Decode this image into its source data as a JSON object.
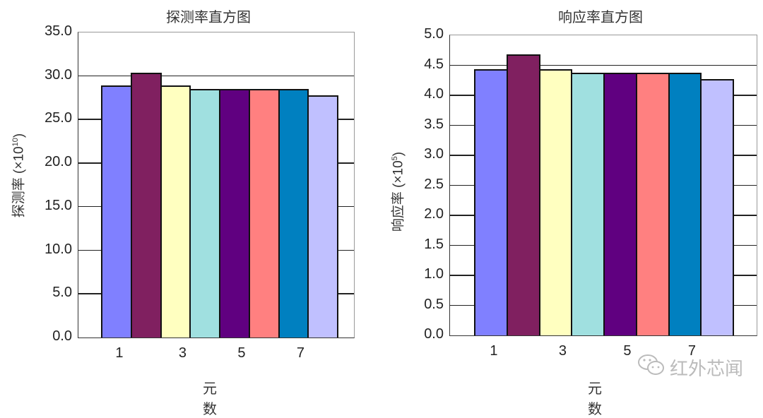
{
  "chart_data": [
    {
      "type": "bar",
      "title": "探测率直方图",
      "xlabel": "元数",
      "ylabel": "探测率 (×10^10)",
      "categories": [
        "1",
        "2",
        "3",
        "4",
        "5",
        "6",
        "7",
        "8"
      ],
      "x_tick_labels": [
        "1",
        "3",
        "5",
        "7"
      ],
      "values": [
        28.9,
        30.4,
        28.9,
        28.5,
        28.5,
        28.5,
        28.5,
        27.8
      ],
      "colors": [
        "#8080ff",
        "#802060",
        "#ffffc0",
        "#a0e0e0",
        "#600080",
        "#ff8080",
        "#0080c0",
        "#c0c0ff"
      ],
      "ylim": [
        0,
        35
      ],
      "y_ticks": [
        "0.0",
        "5.0",
        "10.0",
        "15.0",
        "20.0",
        "25.0",
        "30.0",
        "35.0"
      ],
      "grid": true,
      "legend": null
    },
    {
      "type": "bar",
      "title": "响应率直方图",
      "xlabel": "元数",
      "ylabel": "响应率 (×10^5)",
      "categories": [
        "1",
        "2",
        "3",
        "4",
        "5",
        "6",
        "7",
        "8"
      ],
      "x_tick_labels": [
        "1",
        "3",
        "5",
        "7"
      ],
      "values": [
        4.44,
        4.68,
        4.44,
        4.38,
        4.38,
        4.38,
        4.38,
        4.27
      ],
      "colors": [
        "#8080ff",
        "#802060",
        "#ffffc0",
        "#a0e0e0",
        "#600080",
        "#ff8080",
        "#0080c0",
        "#c0c0ff"
      ],
      "ylim": [
        0,
        5
      ],
      "y_ticks": [
        "0.0",
        "0.5",
        "1.0",
        "1.5",
        "2.0",
        "2.5",
        "3.0",
        "3.5",
        "4.0",
        "4.5",
        "5.0"
      ],
      "grid": true,
      "legend": null
    }
  ],
  "left": {
    "title": "探测率直方图",
    "ylabel_main": "探测率 (×10",
    "ylabel_exp": "10",
    "ylabel_end": ")",
    "xlabel": "元数"
  },
  "right": {
    "title": "响应率直方图",
    "ylabel_main": "响应率 (×10",
    "ylabel_exp": "5",
    "ylabel_end": ")",
    "xlabel": "元数"
  },
  "watermark": {
    "icon": "wechat-icon",
    "text": "红外芯闻"
  }
}
